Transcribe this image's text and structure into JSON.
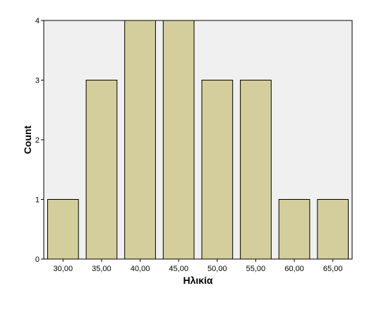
{
  "chart_data": {
    "type": "bar",
    "title": "",
    "xlabel": "Ηλικία",
    "ylabel": "Count",
    "categories": [
      "30,00",
      "35,00",
      "40,00",
      "45,00",
      "50,00",
      "55,00",
      "60,00",
      "65,00"
    ],
    "values": [
      1,
      3,
      4,
      4,
      3,
      3,
      1,
      1
    ],
    "ylim": [
      0,
      4
    ],
    "yticks": [
      "0",
      "1",
      "2",
      "3",
      "4"
    ],
    "grid": false,
    "legend": "none",
    "colors": {
      "bar_fill": "#d3ce9b",
      "bar_stroke": "#000000",
      "plot_background": "#f0f0f0",
      "axis": "#000000"
    }
  }
}
